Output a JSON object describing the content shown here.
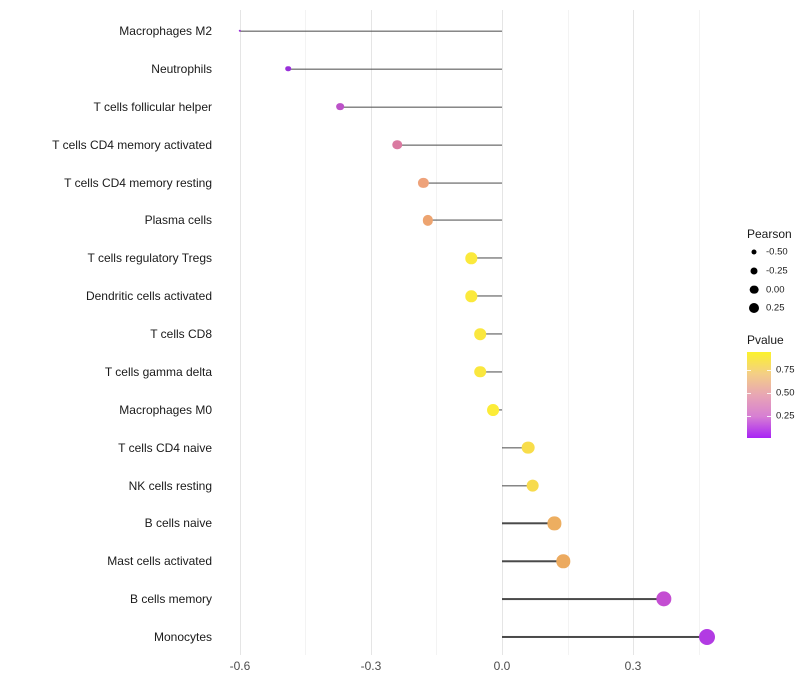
{
  "chart_data": {
    "type": "scatter",
    "subtype": "lollipop-horizontal",
    "title": "",
    "xlabel": "",
    "ylabel": "",
    "xlim": [
      -0.66,
      0.51
    ],
    "x_major_ticks": [
      -0.6,
      -0.3,
      0.0,
      0.3
    ],
    "x_minor_ticks": [
      -0.45,
      -0.15,
      0.15,
      0.45
    ],
    "x_tick_labels": [
      "-0.6",
      "-0.3",
      "0.0",
      "0.3"
    ],
    "grid": "vertical major and minor, no horizontal, white panel",
    "categories": [
      "Macrophages M2",
      "Neutrophils",
      "T cells follicular helper",
      "T cells CD4 memory activated",
      "T cells CD4 memory resting",
      "Plasma cells",
      "T cells regulatory  Tregs",
      "Dendritic cells activated",
      "T cells CD8",
      "T cells gamma delta",
      "Macrophages M0",
      "T cells CD4 naive",
      "NK cells resting",
      "B cells naive",
      "Mast cells activated",
      "B cells memory",
      "Monocytes"
    ],
    "series": [
      {
        "name": "Pearson",
        "values": [
          -0.6,
          -0.49,
          -0.37,
          -0.24,
          -0.18,
          -0.17,
          -0.07,
          -0.07,
          -0.05,
          -0.05,
          -0.02,
          0.06,
          0.07,
          0.12,
          0.14,
          0.37,
          0.47
        ]
      }
    ],
    "point_colors": [
      "#9c2bd9",
      "#9930da",
      "#bc52c8",
      "#da7aa1",
      "#eea27a",
      "#eda470",
      "#fbe93c",
      "#fbe93c",
      "#fae73e",
      "#fae73e",
      "#fcec38",
      "#f8dd4a",
      "#f7db4d",
      "#edae60",
      "#ecaa5f",
      "#c44ed2",
      "#b23be3"
    ],
    "stem_color": "#4a4a4a",
    "legend_size": {
      "title": "Pearson",
      "labels": [
        "-0.50",
        "-0.25",
        "0.00",
        "0.25"
      ],
      "dot_color": "#000000"
    },
    "legend_color": {
      "title": "Pvalue",
      "labels": [
        "0.75",
        "0.50",
        "0.25"
      ],
      "gradient_top_to_bottom": [
        "#fbf22b",
        "#f4cf85",
        "#e8a6b4",
        "#d77fd3",
        "#a823f5"
      ]
    }
  }
}
